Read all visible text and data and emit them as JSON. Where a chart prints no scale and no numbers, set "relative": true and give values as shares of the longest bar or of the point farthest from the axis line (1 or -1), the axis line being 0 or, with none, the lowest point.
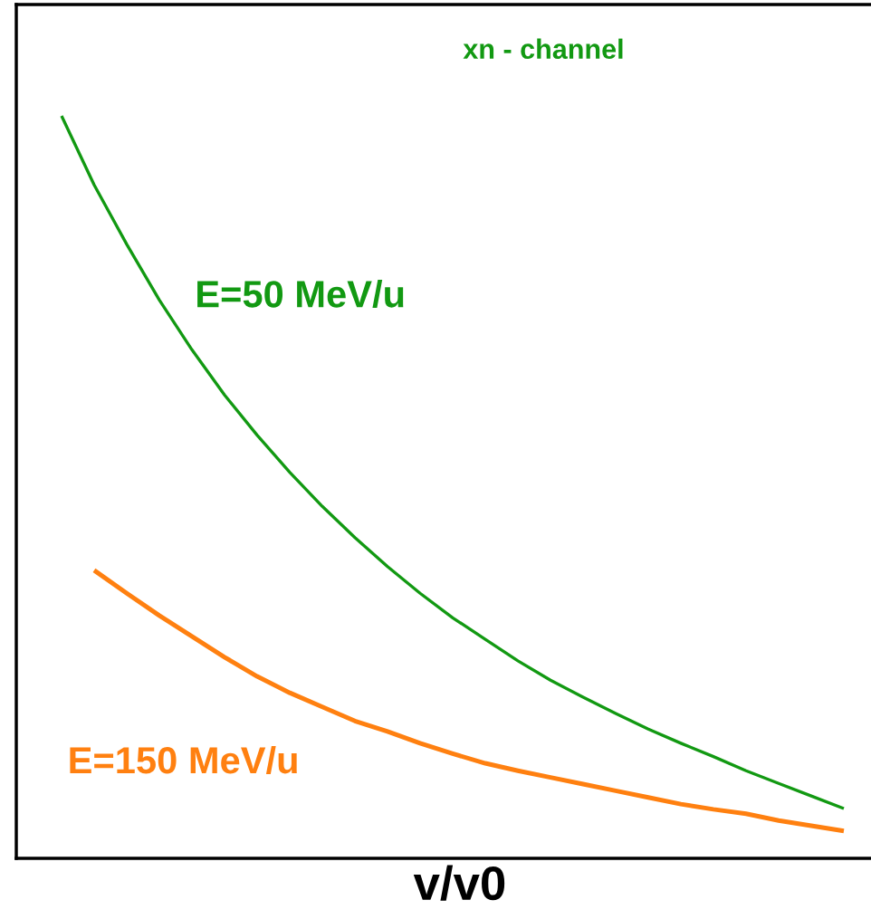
{
  "chart_data": {
    "type": "line",
    "title": "xn - channel",
    "xlabel": "v/v0",
    "relative": true,
    "categories": [
      null,
      null,
      null,
      null,
      null,
      null,
      null,
      null,
      null,
      null,
      null,
      null,
      null,
      null,
      null,
      null,
      null,
      null,
      null,
      null,
      null,
      null,
      null,
      null,
      null
    ],
    "series": [
      {
        "name": "E=50 MeV/u",
        "color": "#129912",
        "values": [
          1.0,
          0.907,
          0.827,
          0.752,
          0.685,
          0.624,
          0.57,
          0.52,
          0.474,
          0.432,
          0.393,
          0.357,
          0.324,
          0.295,
          0.266,
          0.24,
          0.217,
          0.195,
          0.174,
          0.155,
          0.137,
          0.118,
          0.101,
          0.084,
          0.067
        ]
      },
      {
        "name": "E=150 MeV/u",
        "color": "#ff8010",
        "values": [
          null,
          0.388,
          0.357,
          0.327,
          0.299,
          0.271,
          0.245,
          0.223,
          0.204,
          0.185,
          0.171,
          0.155,
          0.141,
          0.128,
          0.118,
          0.109,
          0.1,
          0.091,
          0.082,
          0.073,
          0.066,
          0.06,
          0.051,
          0.044,
          0.037
        ]
      }
    ]
  }
}
